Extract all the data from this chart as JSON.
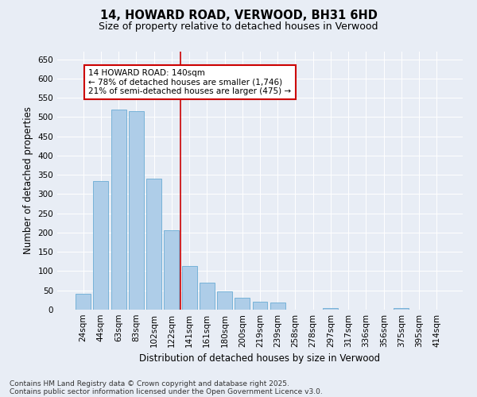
{
  "title1": "14, HOWARD ROAD, VERWOOD, BH31 6HD",
  "title2": "Size of property relative to detached houses in Verwood",
  "xlabel": "Distribution of detached houses by size in Verwood",
  "ylabel": "Number of detached properties",
  "categories": [
    "24sqm",
    "44sqm",
    "63sqm",
    "83sqm",
    "102sqm",
    "122sqm",
    "141sqm",
    "161sqm",
    "180sqm",
    "200sqm",
    "219sqm",
    "239sqm",
    "258sqm",
    "278sqm",
    "297sqm",
    "317sqm",
    "336sqm",
    "356sqm",
    "375sqm",
    "395sqm",
    "414sqm"
  ],
  "values": [
    42,
    335,
    520,
    515,
    340,
    207,
    113,
    70,
    48,
    30,
    20,
    18,
    1,
    1,
    5,
    1,
    1,
    1,
    5,
    1,
    1
  ],
  "bar_color": "#aecde8",
  "bar_edge_color": "#6aacd4",
  "bg_color": "#e8edf5",
  "grid_color": "#ffffff",
  "vline_color": "#cc0000",
  "annotation_text": "14 HOWARD ROAD: 140sqm\n← 78% of detached houses are smaller (1,746)\n21% of semi-detached houses are larger (475) →",
  "annotation_box_color": "#ffffff",
  "annotation_box_edge": "#cc0000",
  "footer1": "Contains HM Land Registry data © Crown copyright and database right 2025.",
  "footer2": "Contains public sector information licensed under the Open Government Licence v3.0.",
  "ylim_max": 670,
  "yticks": [
    0,
    50,
    100,
    150,
    200,
    250,
    300,
    350,
    400,
    450,
    500,
    550,
    600,
    650
  ],
  "title1_fontsize": 10.5,
  "title2_fontsize": 9,
  "tick_fontsize": 7.5,
  "ylabel_fontsize": 8.5,
  "xlabel_fontsize": 8.5,
  "footer_fontsize": 6.5
}
